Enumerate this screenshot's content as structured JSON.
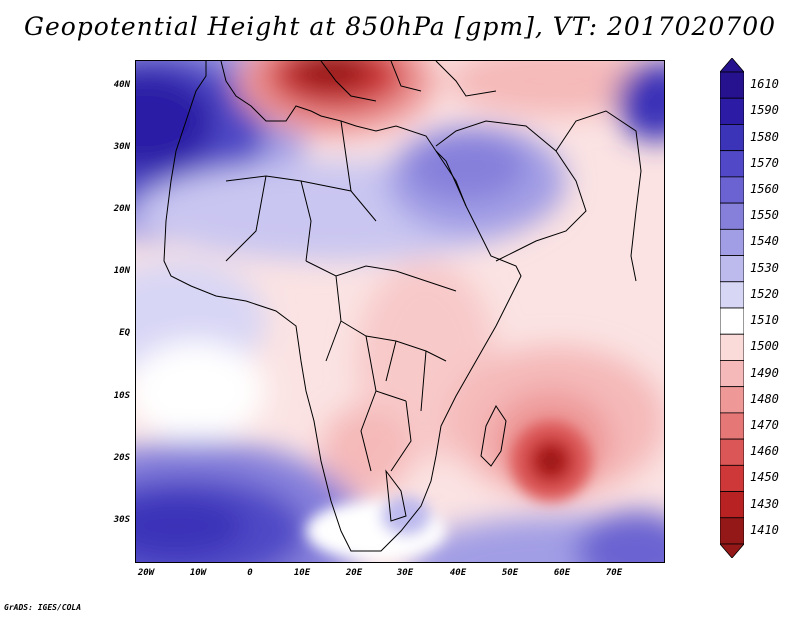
{
  "title": "Geopotential Height at 850hPa [gpm], VT: 2017020700",
  "footer": "GrADS: IGES/COLA",
  "lat_labels": [
    "40N",
    "30N",
    "20N",
    "10N",
    "EQ",
    "10S",
    "20S",
    "30S"
  ],
  "lon_labels": [
    "20W",
    "10W",
    "0",
    "10E",
    "20E",
    "30E",
    "40E",
    "50E",
    "60E",
    "70E"
  ],
  "colorbar": {
    "levels": [
      "1610",
      "1590",
      "1580",
      "1570",
      "1560",
      "1550",
      "1540",
      "1530",
      "1520",
      "1510",
      "1500",
      "1490",
      "1480",
      "1470",
      "1460",
      "1450",
      "1430",
      "1410"
    ],
    "colors": [
      "#26128e",
      "#2c1ca5",
      "#3b33b8",
      "#5048c6",
      "#6a63d1",
      "#8680db",
      "#a29ee5",
      "#bdbaee",
      "#d8d6f5",
      "#ffffff",
      "#fbdada",
      "#f5b9b9",
      "#ee9898",
      "#e67777",
      "#db5656",
      "#cf3838",
      "#b82222",
      "#951818"
    ]
  }
}
